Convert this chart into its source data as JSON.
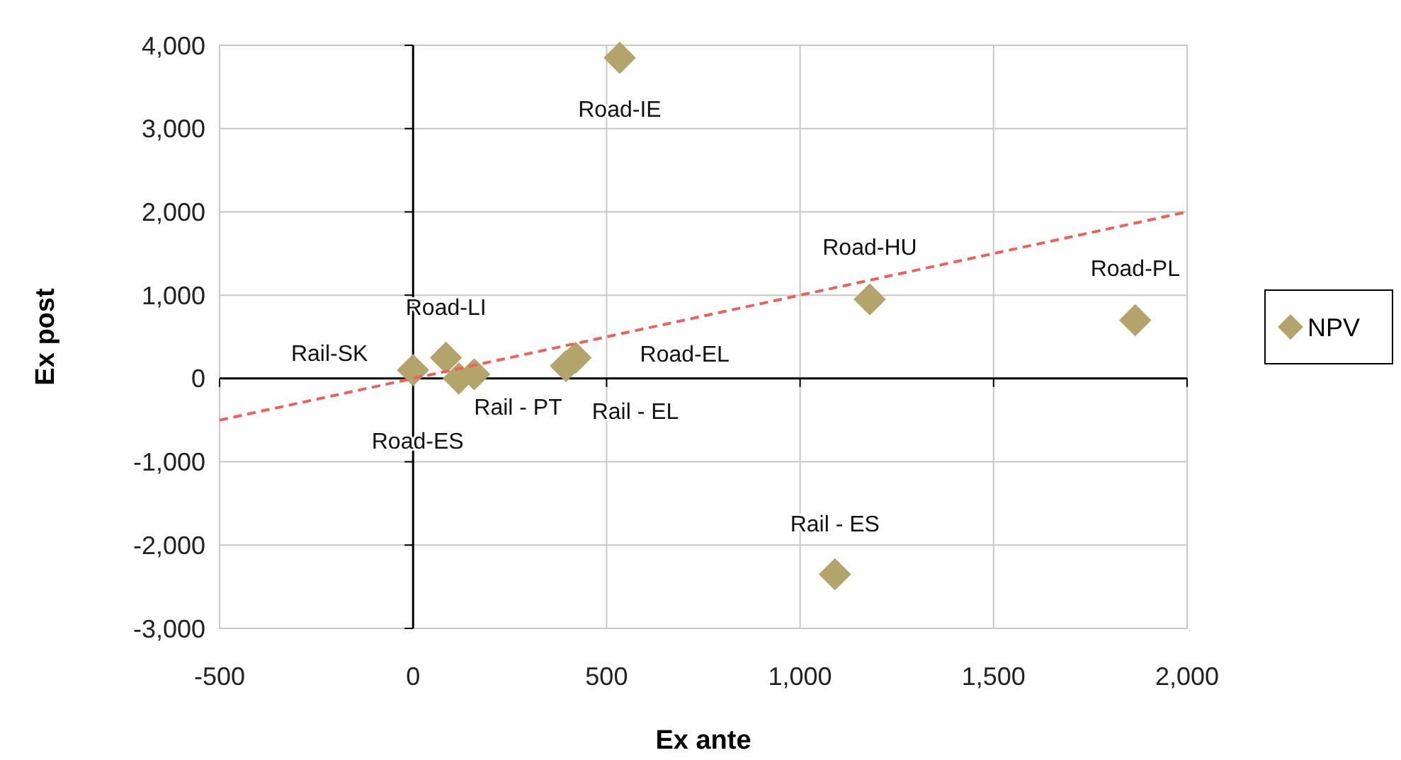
{
  "chart_data": {
    "type": "scatter",
    "xlabel": "Ex ante",
    "ylabel": "Ex post",
    "x": [
      534,
      1180,
      1866,
      0,
      85,
      158,
      118,
      420,
      395,
      1090
    ],
    "series": [
      {
        "name": "NPV",
        "color": "#b3a46c",
        "values": [
          3850,
          950,
          700,
          100,
          250,
          50,
          0,
          250,
          150,
          -2350
        ],
        "marker": "diamond"
      },
      {
        "type": "line",
        "color": "#f0605a",
        "x": [
          -500,
          2000
        ],
        "values": [
          -500,
          2000
        ],
        "line_style": "dashed",
        "marker": "none"
      }
    ],
    "annotations": [
      {
        "text": "Road-IE",
        "x": 534,
        "y": 3850
      },
      {
        "text": "Road-HU",
        "x": 1180,
        "y": 950
      },
      {
        "text": "Road-PL",
        "x": 1866,
        "y": 700
      },
      {
        "text": "Rail-SK",
        "x": 0,
        "y": 100
      },
      {
        "text": "Road-LI",
        "x": 85,
        "y": 250
      },
      {
        "text": "Rail - PT",
        "x": 158,
        "y": 50
      },
      {
        "text": "Road-ES",
        "x": 118,
        "y": 0
      },
      {
        "text": "Road-EL",
        "x": 420,
        "y": 250
      },
      {
        "text": "Rail - EL",
        "x": 395,
        "y": 150
      },
      {
        "text": "Rail - ES",
        "x": 1090,
        "y": -2350
      }
    ],
    "xlim": [
      -500,
      2000
    ],
    "xticks": [
      {
        "value": -500,
        "label": "-500"
      },
      0,
      500,
      {
        "value": 1000,
        "label": "1,000"
      },
      {
        "value": 1500,
        "label": "1,500"
      },
      {
        "value": 2000,
        "label": "2,000"
      }
    ],
    "ylim": [
      -3000,
      4000
    ],
    "yticks": [
      {
        "value": -3000,
        "label": "-3,000"
      },
      {
        "value": -2000,
        "label": "-2,000"
      },
      {
        "value": -1000,
        "label": "-1,000"
      },
      0,
      {
        "value": 1000,
        "label": "1,000"
      },
      {
        "value": 2000,
        "label": "2,000"
      },
      {
        "value": 3000,
        "label": "3,000"
      },
      {
        "value": 4000,
        "label": "4,000"
      }
    ],
    "grid": true,
    "legend": "right"
  }
}
